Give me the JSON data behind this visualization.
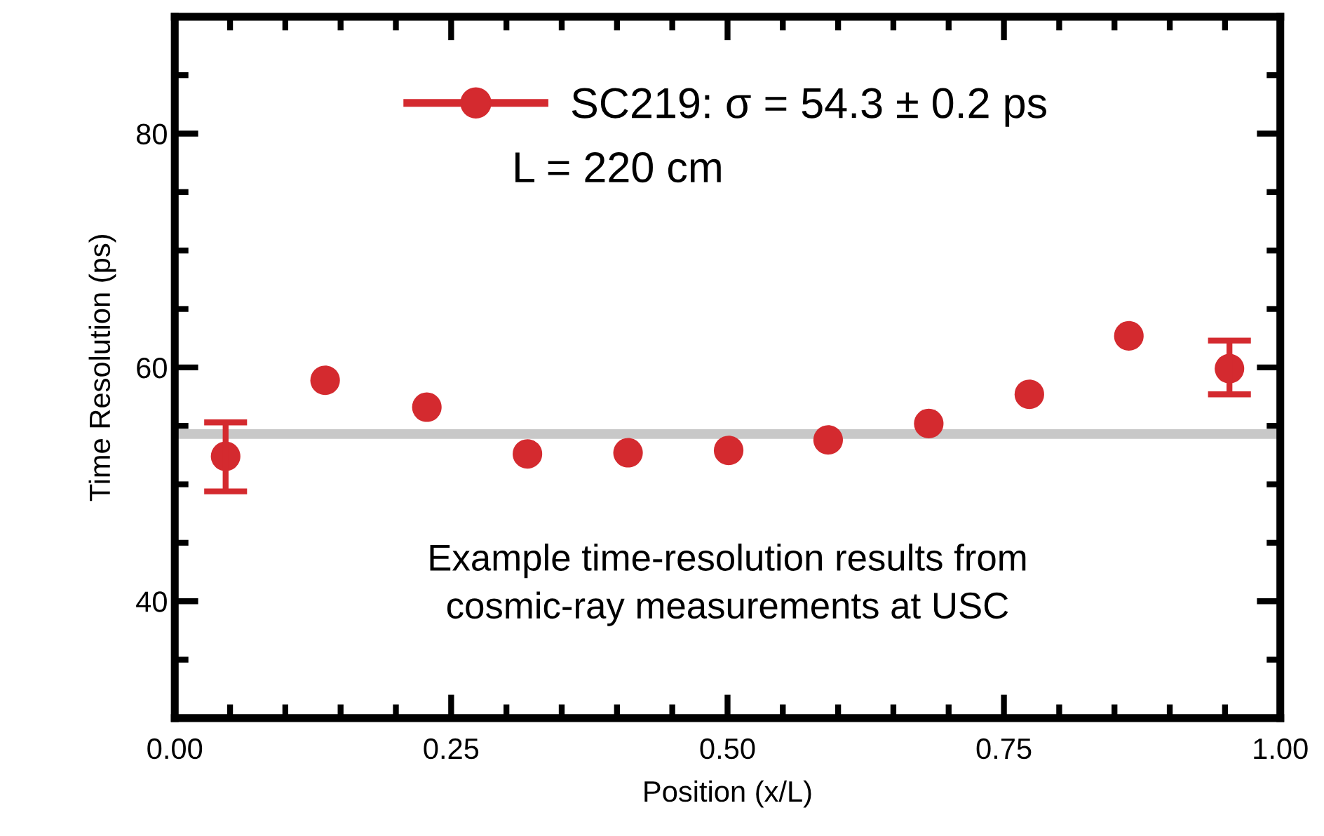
{
  "chart_data": {
    "type": "scatter",
    "xlabel": "Position (x/L)",
    "ylabel": "Time Resolution (ps)",
    "x": [
      0.046,
      0.136,
      0.228,
      0.319,
      0.41,
      0.501,
      0.591,
      0.682,
      0.773,
      0.863,
      0.954
    ],
    "series": [
      {
        "name": "SC219: σ = 54.3 ± 0.2 ps",
        "color": "#d42a2f",
        "values": [
          52.4,
          58.9,
          56.6,
          52.6,
          52.7,
          52.9,
          53.8,
          55.2,
          57.7,
          62.7,
          59.9
        ],
        "errors": [
          [
            49.4,
            55.3
          ],
          null,
          null,
          null,
          null,
          null,
          null,
          null,
          null,
          null,
          [
            57.7,
            62.3
          ]
        ]
      }
    ],
    "ref_lines": [
      {
        "axis": "y",
        "value": 54.3,
        "color": "#c8c8c8",
        "line_style": "solid"
      }
    ],
    "annotations": [
      "L = 220 cm",
      "Example time-resolution results from\ncosmic-ray measurements at USC"
    ],
    "xlim": [
      0,
      1
    ],
    "xticks": [
      {
        "value": 0,
        "label": "0.00"
      },
      {
        "value": 0.05,
        "label": null
      },
      {
        "value": 0.1,
        "label": null
      },
      {
        "value": 0.15,
        "label": null
      },
      {
        "value": 0.2,
        "label": null
      },
      0.25,
      {
        "value": 0.3,
        "label": null
      },
      {
        "value": 0.35,
        "label": null
      },
      {
        "value": 0.4,
        "label": null
      },
      {
        "value": 0.45,
        "label": null
      },
      {
        "value": 0.5,
        "label": "0.50"
      },
      {
        "value": 0.55,
        "label": null
      },
      {
        "value": 0.6,
        "label": null
      },
      {
        "value": 0.65,
        "label": null
      },
      {
        "value": 0.7,
        "label": null
      },
      0.75,
      {
        "value": 0.8,
        "label": null
      },
      {
        "value": 0.85,
        "label": null
      },
      {
        "value": 0.9,
        "label": null
      },
      {
        "value": 0.95,
        "label": null
      },
      {
        "value": 1,
        "label": "1.00"
      }
    ],
    "ylim": [
      30,
      90
    ],
    "yticks": [
      {
        "value": 35,
        "label": null
      },
      40,
      {
        "value": 45,
        "label": null
      },
      {
        "value": 50,
        "label": null
      },
      {
        "value": 55,
        "label": null
      },
      60,
      {
        "value": 65,
        "label": null
      },
      {
        "value": 70,
        "label": null
      },
      {
        "value": 75,
        "label": null
      },
      80,
      {
        "value": 85,
        "label": null
      }
    ],
    "grid": false,
    "legend": "top",
    "marker": "circle"
  }
}
